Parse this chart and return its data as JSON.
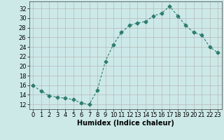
{
  "x": [
    0,
    1,
    2,
    3,
    4,
    5,
    6,
    7,
    8,
    9,
    10,
    11,
    12,
    13,
    14,
    15,
    16,
    17,
    18,
    19,
    20,
    21,
    22,
    23
  ],
  "y": [
    15.9,
    14.8,
    13.8,
    13.5,
    13.3,
    13.0,
    12.3,
    12.0,
    15.0,
    21.0,
    24.5,
    27.0,
    28.5,
    29.0,
    29.3,
    30.5,
    31.0,
    32.5,
    30.5,
    28.5,
    27.0,
    26.5,
    24.0,
    22.8
  ],
  "line_color": "#2e7d6e",
  "marker": "D",
  "markersize": 2.5,
  "bg_color": "#cce9e8",
  "grid_color": "#b8b8b8",
  "xlabel": "Humidex (Indice chaleur)",
  "xlim": [
    -0.5,
    23.5
  ],
  "ylim": [
    11,
    33.5
  ],
  "yticks": [
    12,
    14,
    16,
    18,
    20,
    22,
    24,
    26,
    28,
    30,
    32
  ],
  "xticks": [
    0,
    1,
    2,
    3,
    4,
    5,
    6,
    7,
    8,
    9,
    10,
    11,
    12,
    13,
    14,
    15,
    16,
    17,
    18,
    19,
    20,
    21,
    22,
    23
  ],
  "xlabel_fontsize": 7,
  "tick_fontsize": 6
}
